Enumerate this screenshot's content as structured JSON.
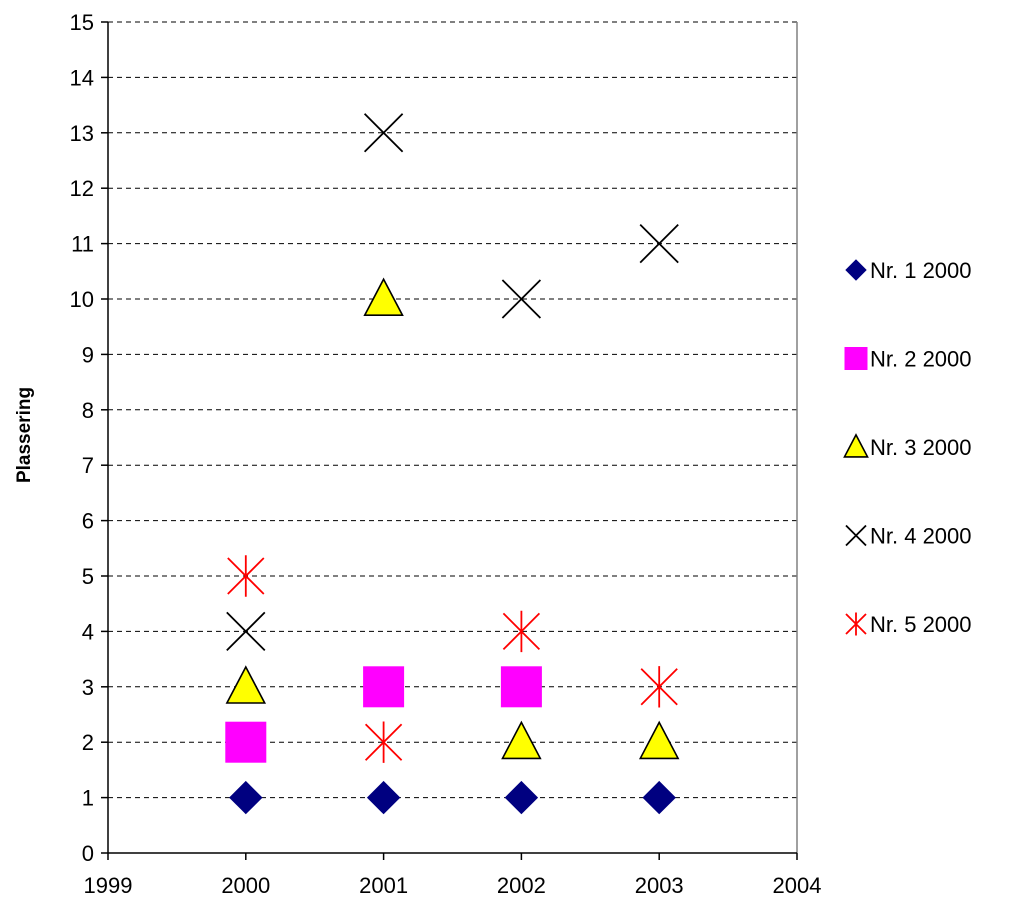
{
  "chart_data": {
    "type": "scatter",
    "title": "",
    "xlabel": "",
    "ylabel": "Plassering",
    "xlim": [
      1999,
      2004
    ],
    "ylim": [
      0,
      15
    ],
    "x_ticks": [
      1999,
      2000,
      2001,
      2002,
      2003,
      2004
    ],
    "y_ticks": [
      0,
      1,
      2,
      3,
      4,
      5,
      6,
      7,
      8,
      9,
      10,
      11,
      12,
      13,
      14,
      15
    ],
    "grid": "horizontal dashed",
    "legend_position": "right",
    "series": [
      {
        "name": "Nr. 1 2000",
        "marker": "diamond",
        "color": "#000080",
        "points": [
          {
            "x": 2000,
            "y": 1
          },
          {
            "x": 2001,
            "y": 1
          },
          {
            "x": 2002,
            "y": 1
          },
          {
            "x": 2003,
            "y": 1
          }
        ]
      },
      {
        "name": "Nr. 2 2000",
        "marker": "square",
        "color": "#FF00FF",
        "points": [
          {
            "x": 2000,
            "y": 2
          },
          {
            "x": 2001,
            "y": 3
          },
          {
            "x": 2002,
            "y": 3
          }
        ]
      },
      {
        "name": "Nr. 3 2000",
        "marker": "triangle",
        "color": "#FFFF00",
        "points": [
          {
            "x": 2000,
            "y": 3
          },
          {
            "x": 2001,
            "y": 10
          },
          {
            "x": 2002,
            "y": 2
          },
          {
            "x": 2003,
            "y": 2
          }
        ]
      },
      {
        "name": "Nr. 4 2000",
        "marker": "x",
        "color": "#000000",
        "points": [
          {
            "x": 2000,
            "y": 4
          },
          {
            "x": 2001,
            "y": 13
          },
          {
            "x": 2002,
            "y": 10
          },
          {
            "x": 2003,
            "y": 11
          }
        ]
      },
      {
        "name": "Nr. 5 2000",
        "marker": "star",
        "color": "#FF0000",
        "points": [
          {
            "x": 2000,
            "y": 5
          },
          {
            "x": 2001,
            "y": 2
          },
          {
            "x": 2002,
            "y": 4
          },
          {
            "x": 2003,
            "y": 3
          }
        ]
      }
    ]
  }
}
